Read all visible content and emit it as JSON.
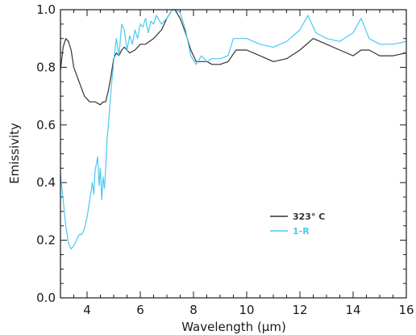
{
  "chart_data": {
    "type": "line",
    "xlabel": "Wavelength (μm)",
    "ylabel": "Emissivity",
    "xlim": [
      3,
      16
    ],
    "ylim": [
      0,
      1.0
    ],
    "x_ticks": [
      4,
      6,
      8,
      10,
      12,
      14,
      16
    ],
    "x_tick_labels": [
      "4",
      "6",
      "8",
      "10",
      "12",
      "14",
      "16"
    ],
    "y_ticks": [
      0.0,
      0.2,
      0.4,
      0.6,
      0.8,
      1.0
    ],
    "y_tick_labels": [
      "0.0",
      "0.2",
      "0.4",
      "0.6",
      "0.8",
      "1.0"
    ],
    "grid": false,
    "legend_position": "lower-right",
    "series": [
      {
        "name": "323° C",
        "color": "#333333",
        "x": [
          3.0,
          3.1,
          3.2,
          3.3,
          3.4,
          3.5,
          3.7,
          3.9,
          4.1,
          4.3,
          4.5,
          4.6,
          4.7,
          4.8,
          4.9,
          5.0,
          5.1,
          5.2,
          5.3,
          5.4,
          5.6,
          5.8,
          6.0,
          6.2,
          6.5,
          6.8,
          7.0,
          7.2,
          7.3,
          7.5,
          7.7,
          7.9,
          8.1,
          8.3,
          8.5,
          8.7,
          9.0,
          9.3,
          9.6,
          10.0,
          10.5,
          11.0,
          11.5,
          12.0,
          12.5,
          13.0,
          13.5,
          14.0,
          14.3,
          14.6,
          15.0,
          15.5,
          16.0
        ],
        "y": [
          0.79,
          0.87,
          0.9,
          0.89,
          0.86,
          0.8,
          0.75,
          0.7,
          0.68,
          0.68,
          0.67,
          0.68,
          0.68,
          0.72,
          0.77,
          0.83,
          0.85,
          0.84,
          0.86,
          0.87,
          0.85,
          0.86,
          0.88,
          0.88,
          0.9,
          0.93,
          0.97,
          1.0,
          1.0,
          0.97,
          0.92,
          0.86,
          0.82,
          0.82,
          0.82,
          0.81,
          0.81,
          0.82,
          0.86,
          0.86,
          0.84,
          0.82,
          0.83,
          0.86,
          0.9,
          0.88,
          0.86,
          0.84,
          0.86,
          0.86,
          0.84,
          0.84,
          0.85
        ]
      },
      {
        "name": "1-R",
        "color": "#4cc8f0",
        "x": [
          3.0,
          3.1,
          3.2,
          3.3,
          3.4,
          3.5,
          3.6,
          3.7,
          3.8,
          3.9,
          4.0,
          4.1,
          4.2,
          4.25,
          4.3,
          4.4,
          4.45,
          4.5,
          4.55,
          4.6,
          4.65,
          4.7,
          4.75,
          4.8,
          4.9,
          5.0,
          5.1,
          5.2,
          5.3,
          5.4,
          5.5,
          5.6,
          5.7,
          5.8,
          5.9,
          6.0,
          6.1,
          6.2,
          6.3,
          6.4,
          6.5,
          6.6,
          6.8,
          7.0,
          7.2,
          7.3,
          7.5,
          7.7,
          7.9,
          8.1,
          8.3,
          8.5,
          8.7,
          9.0,
          9.3,
          9.5,
          9.7,
          10.0,
          10.5,
          11.0,
          11.5,
          12.0,
          12.3,
          12.6,
          13.0,
          13.5,
          14.0,
          14.3,
          14.6,
          15.0,
          15.5,
          16.0
        ],
        "y": [
          0.43,
          0.34,
          0.25,
          0.19,
          0.17,
          0.18,
          0.2,
          0.22,
          0.22,
          0.24,
          0.28,
          0.34,
          0.4,
          0.36,
          0.44,
          0.49,
          0.39,
          0.45,
          0.34,
          0.42,
          0.38,
          0.45,
          0.55,
          0.6,
          0.72,
          0.82,
          0.9,
          0.84,
          0.95,
          0.93,
          0.86,
          0.91,
          0.88,
          0.93,
          0.9,
          0.95,
          0.94,
          0.97,
          0.92,
          0.96,
          0.95,
          0.98,
          0.95,
          0.97,
          1.0,
          1.0,
          0.99,
          0.93,
          0.84,
          0.81,
          0.84,
          0.82,
          0.83,
          0.83,
          0.84,
          0.9,
          0.9,
          0.9,
          0.88,
          0.87,
          0.89,
          0.93,
          0.98,
          0.92,
          0.9,
          0.89,
          0.92,
          0.97,
          0.9,
          0.88,
          0.88,
          0.89
        ]
      }
    ]
  }
}
